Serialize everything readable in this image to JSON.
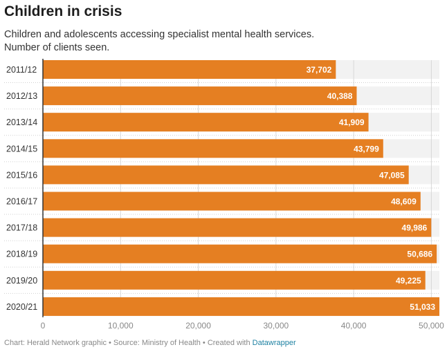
{
  "title": "Children in crisis",
  "subtitle_lines": [
    "Children and adolescents accessing specialist mental health services.",
    "Number of clients seen."
  ],
  "footer": {
    "chart_label": "Chart: Herald Network graphic",
    "separator": " • ",
    "source": "Source: Ministry of Health",
    "created": "Created with ",
    "tool": "Datawrapper"
  },
  "colors": {
    "bar": "#e57f22",
    "track": "#f2f2f2",
    "grid": "#d8d8d8",
    "value_label": "#ffffff",
    "link": "#1d81a2"
  },
  "chart_data": {
    "type": "bar",
    "orientation": "horizontal",
    "categories": [
      "2011/12",
      "2012/13",
      "2013/14",
      "2014/15",
      "2015/16",
      "2016/17",
      "2017/18",
      "2018/19",
      "2019/20",
      "2020/21"
    ],
    "values": [
      37702,
      40388,
      41909,
      43799,
      47085,
      48609,
      49986,
      50686,
      49225,
      51033
    ],
    "value_labels": [
      "37,702",
      "40,388",
      "41,909",
      "43,799",
      "47,085",
      "48,609",
      "49,986",
      "50,686",
      "49,225",
      "51,033"
    ],
    "xlim": [
      0,
      51033
    ],
    "x_ticks": [
      0,
      10000,
      20000,
      30000,
      40000,
      50000
    ],
    "x_tick_labels": [
      "0",
      "10,000",
      "20,000",
      "30,000",
      "40,000",
      "50,000"
    ],
    "grid": true
  }
}
